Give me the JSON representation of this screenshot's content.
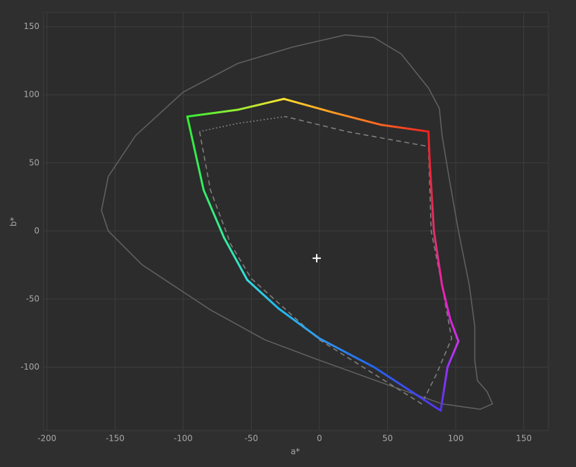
{
  "chart_data": {
    "type": "gamut",
    "x_label": "a*",
    "y_label": "b*",
    "xlim": [
      -202.5,
      168
    ],
    "ylim": [
      -146.5,
      160.5
    ],
    "xticks": [
      -200,
      -150,
      -100,
      -50,
      0,
      50,
      100,
      150
    ],
    "yticks": [
      -100,
      -50,
      0,
      50,
      100,
      150
    ],
    "grid": true,
    "series": [
      {
        "style": "solid",
        "color": "#606060",
        "x": [
          19,
          -20,
          -60,
          -100,
          -135,
          -155,
          -160,
          -155,
          -130,
          -80,
          -40,
          0,
          50,
          90,
          118,
          127,
          123,
          116,
          114,
          114,
          110,
          102,
          95,
          90,
          88,
          80,
          60,
          40,
          19
        ],
        "values": [
          144,
          135,
          123,
          102,
          70,
          40,
          15,
          0,
          -25,
          -58,
          -80,
          -95,
          -113,
          -127,
          -131,
          -127,
          -118,
          -110,
          -95,
          -70,
          -40,
          0,
          40,
          70,
          90,
          105,
          130,
          142,
          144
        ]
      },
      {
        "style": "dashed",
        "color": "#808080",
        "x": [
          -88,
          -80,
          -65,
          -50,
          0,
          75,
          86,
          97,
          90,
          82,
          80,
          20,
          -25
        ],
        "values": [
          73,
          30,
          -10,
          -35,
          -80,
          -127,
          -105,
          -79,
          -40,
          0,
          62,
          73,
          84
        ]
      },
      {
        "style": "dotted",
        "color": "#808080",
        "x": [
          -25,
          -60,
          -88
        ],
        "values": [
          84,
          79,
          73
        ]
      },
      {
        "style": "gradient",
        "x": [
          -97,
          -60,
          -26,
          10,
          45,
          80,
          81,
          84,
          90,
          96,
          102,
          94,
          89,
          40,
          0,
          -30,
          -53,
          -70,
          -85,
          -97
        ],
        "values": [
          84,
          89,
          97,
          87,
          78,
          73,
          50,
          0,
          -40,
          -65,
          -81,
          -100,
          -132,
          -100,
          -79,
          -57,
          -36,
          -5,
          30,
          84
        ],
        "colors": [
          "#33ee33",
          "#99ee33",
          "#ffe030",
          "#ff9922",
          "#ff6622",
          "#ee2222",
          "#ee2233",
          "#e2306a",
          "#ee22aa",
          "#dd22dd",
          "#cc33ee",
          "#9933ff",
          "#5533ee",
          "#2266ee",
          "#3399ee",
          "#22bbee",
          "#33dddd",
          "#33ee99",
          "#33ee66",
          "#33ee33"
        ]
      }
    ],
    "center": {
      "x": -2,
      "y": -20,
      "color": "#ffffff"
    }
  }
}
